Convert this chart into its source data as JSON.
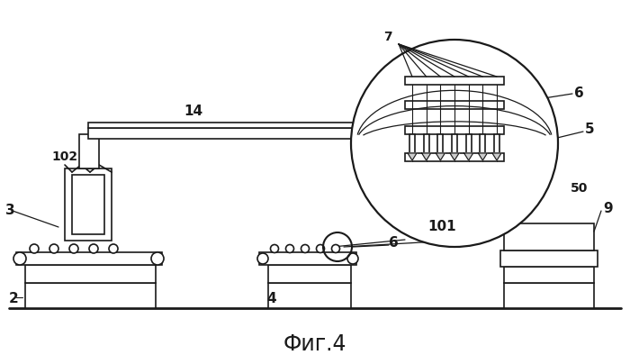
{
  "title": "Фиг.4",
  "bg_color": "#ffffff",
  "line_color": "#1a1a1a",
  "fig_width": 7.0,
  "fig_height": 4.04,
  "dpi": 100
}
